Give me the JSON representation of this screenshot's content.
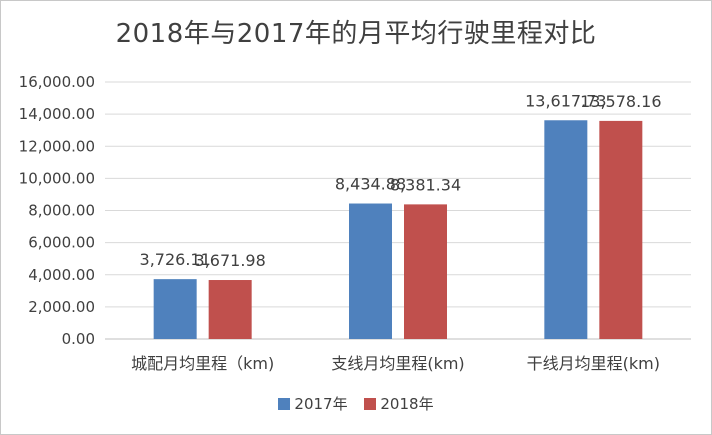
{
  "colors": {
    "series_2017": "#4f81bd",
    "series_2018": "#c0504d",
    "grid": "#d9d9d9",
    "text": "#404040"
  },
  "chart_data": {
    "type": "bar",
    "title": "2018年与2017年的月平均行驶里程对比",
    "categories": [
      "城配月均里程（km)",
      "支线月均里程(km)",
      "干线月均里程(km)"
    ],
    "series": [
      {
        "name": "2017年",
        "values": [
          3726.11,
          8434.88,
          13617.73
        ]
      },
      {
        "name": "2018年",
        "values": [
          3671.98,
          8381.34,
          13578.16
        ]
      }
    ],
    "data_labels": [
      [
        "3,726.11",
        "8,434.88",
        "13,617.73"
      ],
      [
        "3,671.98",
        "8,381.34",
        "13,578.16"
      ]
    ],
    "y_ticks": [
      0,
      2000,
      4000,
      6000,
      8000,
      10000,
      12000,
      14000,
      16000
    ],
    "y_tick_labels": [
      "0.00",
      "2,000.00",
      "4,000.00",
      "6,000.00",
      "8,000.00",
      "10,000.00",
      "12,000.00",
      "14,000.00",
      "16,000.00"
    ],
    "ylim": [
      0,
      16000
    ],
    "grid": true,
    "legend_position": "bottom"
  }
}
